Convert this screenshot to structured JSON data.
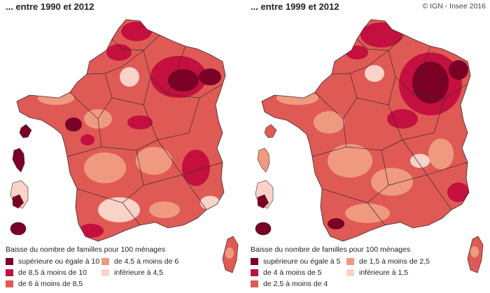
{
  "credit": "© IGN - Insee 2016",
  "maps": [
    {
      "title": "... entre 1990 et 2012",
      "legend_title": "Baisse du nombre de familles pour 100 ménages",
      "classes": [
        {
          "label": "supérieure ou égale à 10",
          "color": "#7a0025"
        },
        {
          "label": "de 8,5 à moins de 10",
          "color": "#c4103f"
        },
        {
          "label": "de 6 à moins de 8,5",
          "color": "#df5a55"
        },
        {
          "label": "de 4,5 à moins de 6",
          "color": "#ef9a80"
        },
        {
          "label": "inférieure à 4,5",
          "color": "#f9d3c8"
        }
      ]
    },
    {
      "title": "... entre 1999 et 2012",
      "legend_title": "Baisse du nombre de familles pour 100 ménages",
      "classes": [
        {
          "label": "supérieure ou égale à 5",
          "color": "#7a0025"
        },
        {
          "label": "de 4 à moins de 5",
          "color": "#c4103f"
        },
        {
          "label": "de 2,5 à moins de 4",
          "color": "#df5a55"
        },
        {
          "label": "de 1,5 à moins de 2,5",
          "color": "#ef9a80"
        },
        {
          "label": "inférieure à 1,5",
          "color": "#f9d3c8"
        }
      ]
    }
  ]
}
